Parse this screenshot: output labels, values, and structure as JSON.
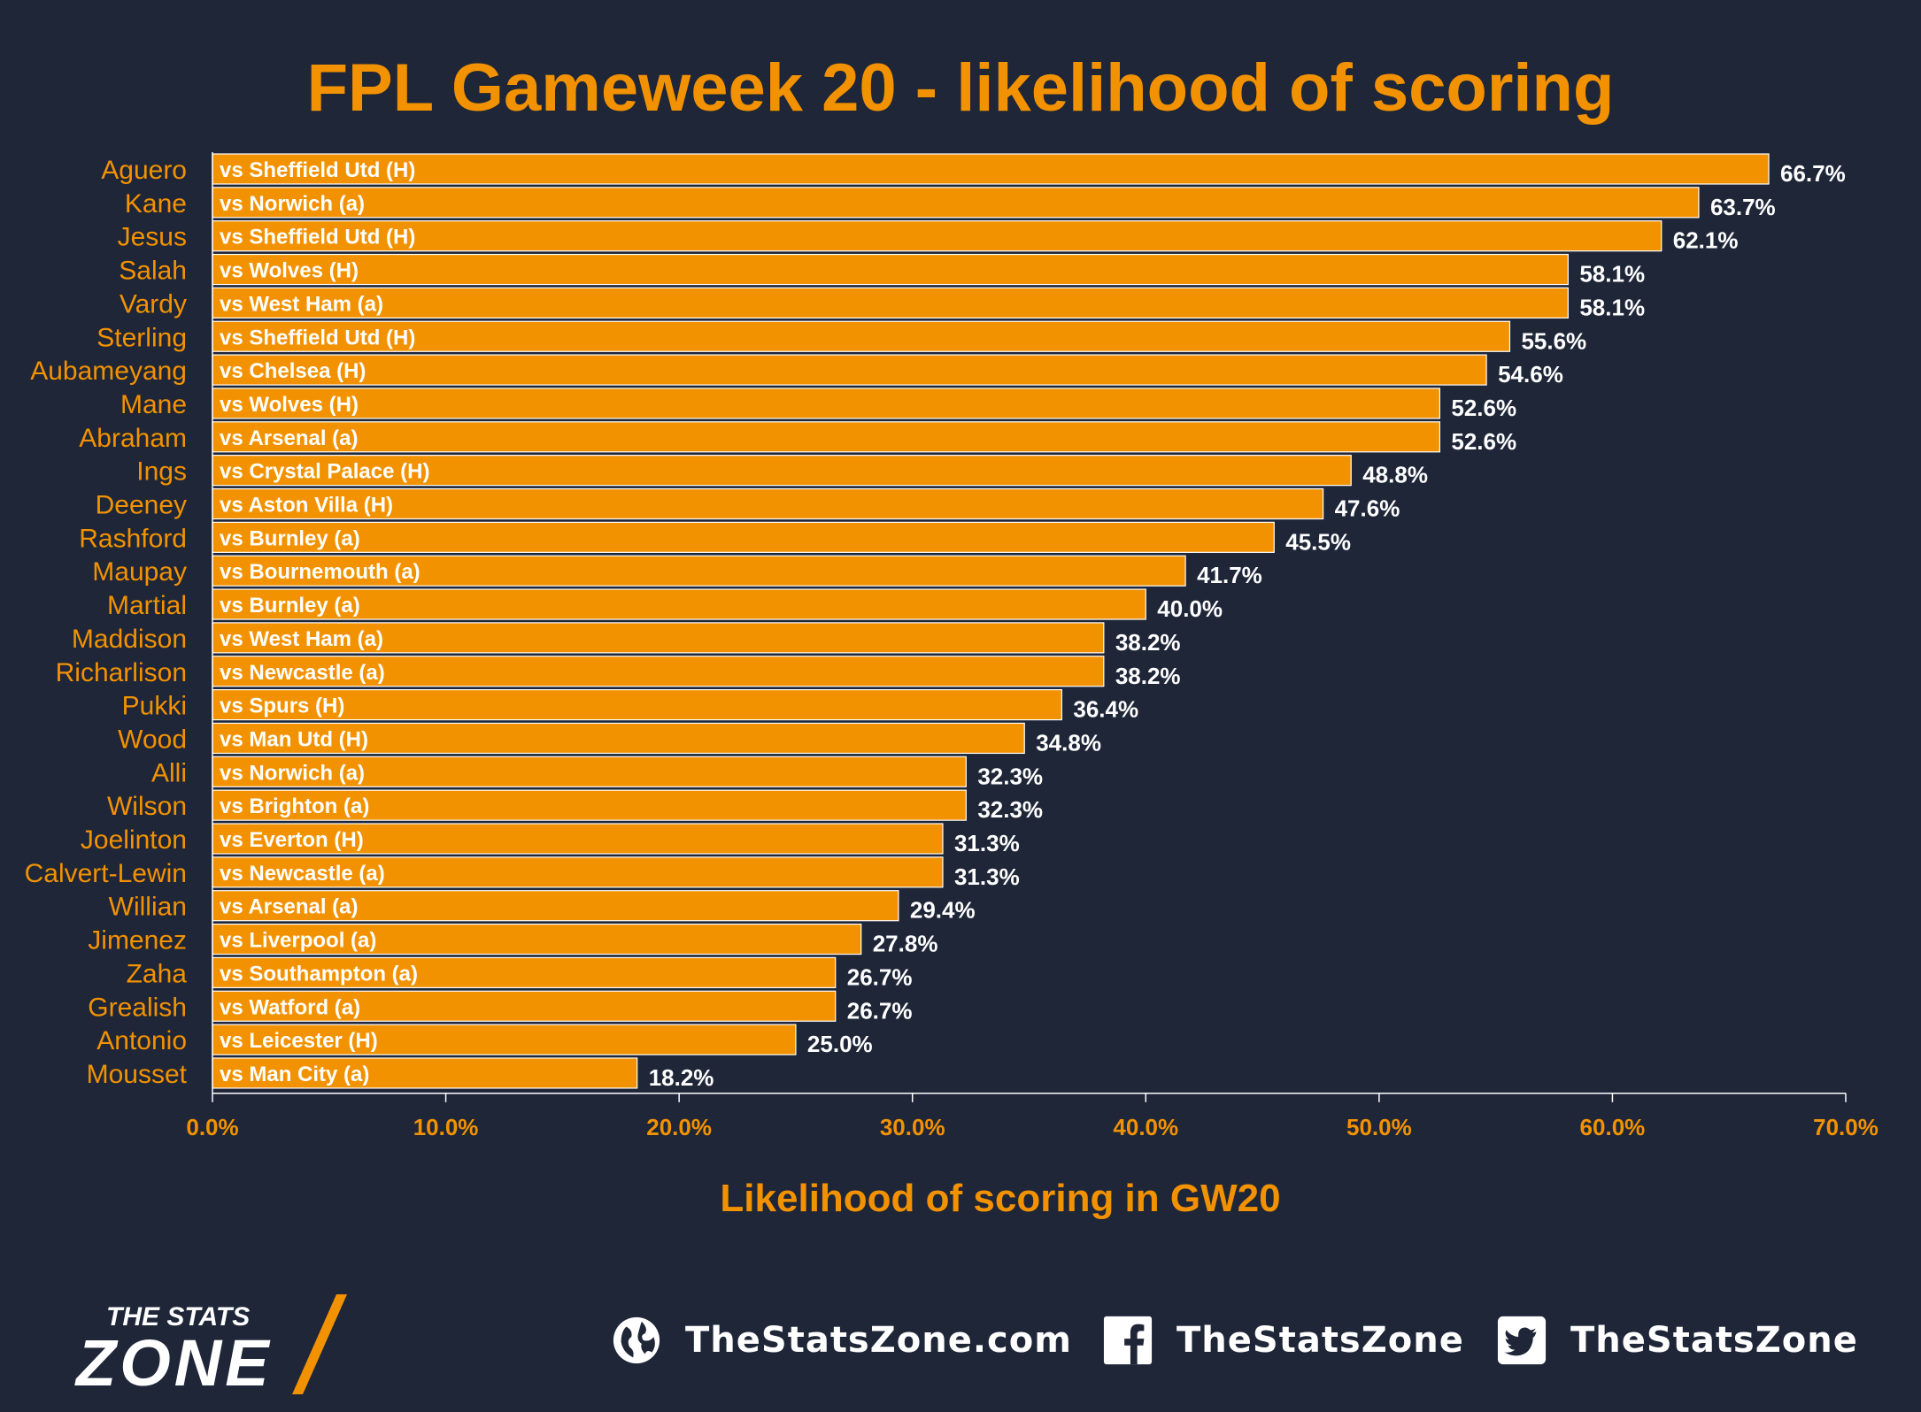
{
  "chart_data": {
    "type": "bar",
    "orientation": "horizontal",
    "title": "FPL Gameweek 20 - likelihood of scoring",
    "xlabel": "Likelihood of scoring in GW20",
    "xlim": [
      0,
      70
    ],
    "ticks": [
      "0.0%",
      "10.0%",
      "20.0%",
      "30.0%",
      "40.0%",
      "50.0%",
      "60.0%",
      "70.0%"
    ],
    "bar_color": "#f39200",
    "categories": [
      "Aguero",
      "Kane",
      "Jesus",
      "Salah",
      "Vardy",
      "Sterling",
      "Aubameyang",
      "Mane",
      "Abraham",
      "Ings",
      "Deeney",
      "Rashford",
      "Maupay",
      "Martial",
      "Maddison",
      "Richarlison",
      "Pukki",
      "Wood",
      "Alli",
      "Wilson",
      "Joelinton",
      "Calvert-Lewin",
      "Willian",
      "Jimenez",
      "Zaha",
      "Grealish",
      "Antonio",
      "Mousset"
    ],
    "fixtures": [
      "vs Sheffield Utd (H)",
      "vs Norwich (a)",
      "vs Sheffield Utd (H)",
      "vs Wolves (H)",
      "vs West Ham (a)",
      "vs Sheffield Utd (H)",
      "vs Chelsea (H)",
      "vs Wolves (H)",
      "vs Arsenal (a)",
      "vs Crystal Palace (H)",
      "vs Aston Villa (H)",
      "vs Burnley (a)",
      "vs Bournemouth (a)",
      "vs Burnley (a)",
      "vs West Ham (a)",
      "vs Newcastle (a)",
      "vs Spurs (H)",
      "vs Man Utd (H)",
      "vs Norwich (a)",
      "vs Brighton (a)",
      "vs Everton (H)",
      "vs Newcastle (a)",
      "vs Arsenal (a)",
      "vs Liverpool (a)",
      "vs Southampton (a)",
      "vs Watford (a)",
      "vs Leicester (H)",
      "vs Man City (a)"
    ],
    "values": [
      66.7,
      63.7,
      62.1,
      58.1,
      58.1,
      55.6,
      54.6,
      52.6,
      52.6,
      48.8,
      47.6,
      45.5,
      41.7,
      40.0,
      38.2,
      38.2,
      36.4,
      34.8,
      32.3,
      32.3,
      31.3,
      31.3,
      29.4,
      27.8,
      26.7,
      26.7,
      25.0,
      18.2
    ],
    "value_labels": [
      "66.7%",
      "63.7%",
      "62.1%",
      "58.1%",
      "58.1%",
      "55.6%",
      "54.6%",
      "52.6%",
      "52.6%",
      "48.8%",
      "47.6%",
      "45.5%",
      "41.7%",
      "40.0%",
      "38.2%",
      "38.2%",
      "36.4%",
      "34.8%",
      "32.3%",
      "32.3%",
      "31.3%",
      "31.3%",
      "29.4%",
      "27.8%",
      "26.7%",
      "26.7%",
      "25.0%",
      "18.2%"
    ]
  },
  "footer": {
    "brand_top": "THE STATS",
    "brand_bottom": "ZONE",
    "website": "TheStatsZone.com",
    "facebook": "TheStatsZone",
    "twitter": "TheStatsZone",
    "website_icon": "globe-icon",
    "facebook_icon": "facebook-icon",
    "twitter_icon": "twitter-icon"
  }
}
